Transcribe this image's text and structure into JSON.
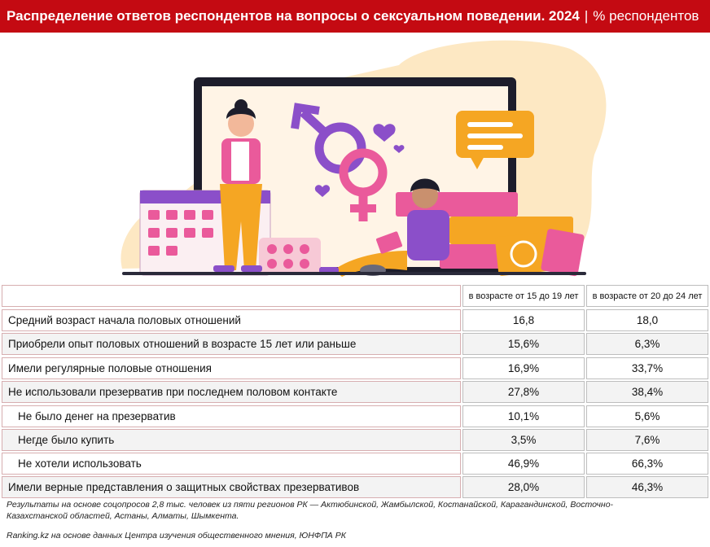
{
  "header": {
    "title": "Распределение ответов респондентов на вопросы о сексуальном поведении. 2024",
    "separator": "|",
    "unit": "% респондентов"
  },
  "table": {
    "columns": [
      "в возрасте от 15 до 19 лет",
      "в возрасте от 20 до 24 лет"
    ],
    "rows": [
      {
        "label": "Средний возраст начала половых отношений",
        "v1": "16,8",
        "v2": "18,0",
        "sub": false
      },
      {
        "label": "Приобрели опыт половых отношений в возрасте 15 лет или раньше",
        "v1": "15,6%",
        "v2": "6,3%",
        "sub": false
      },
      {
        "label": "Имели регулярные половые отношения",
        "v1": "16,9%",
        "v2": "33,7%",
        "sub": false
      },
      {
        "label": "Не использовали презерватив при последнем половом контакте",
        "v1": "27,8%",
        "v2": "38,4%",
        "sub": false
      },
      {
        "label": "Не было денег на презерватив",
        "v1": "10,1%",
        "v2": "5,6%",
        "sub": true
      },
      {
        "label": "Негде было купить",
        "v1": "3,5%",
        "v2": "7,6%",
        "sub": true
      },
      {
        "label": "Не хотели использовать",
        "v1": "46,9%",
        "v2": "66,3%",
        "sub": true
      },
      {
        "label": "Имели верные представления о защитных свойствах презервативов",
        "v1": "28,0%",
        "v2": "46,3%",
        "sub": false
      }
    ]
  },
  "footnote": "Результаты на основе соцопросов 2,8 тыс. человек из пяти регионов РК — Актюбинской, Жамбылской, Костанайской, Карагандинской, Восточно-Казахстанской областей, Астаны, Алматы, Шымкента.",
  "source": "Ranking.kz на основе данных Центра изучения общественного мнения, ЮНФПА РК",
  "colors": {
    "header": "#c40a12",
    "purple": "#8b4fc9",
    "pink": "#ea5a9b",
    "orange": "#f5a623"
  }
}
